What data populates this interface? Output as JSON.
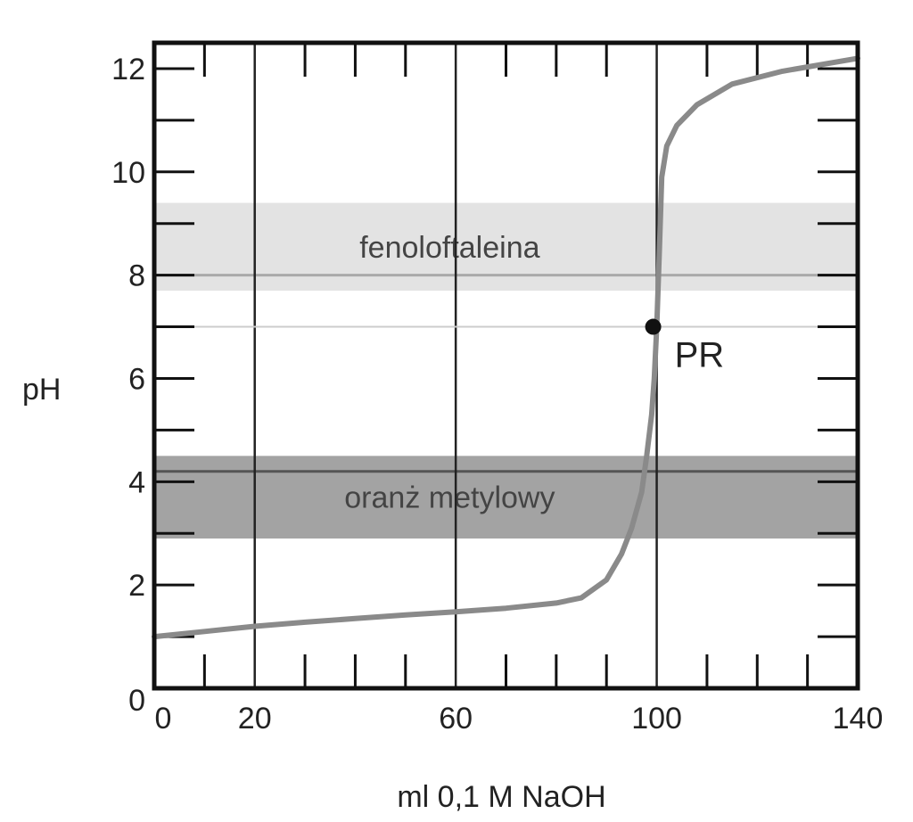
{
  "chart_data": {
    "type": "line",
    "xlabel": "ml 0,1 M NaOH",
    "ylabel": "pH",
    "xlim": [
      0,
      140
    ],
    "ylim": [
      0,
      12.5
    ],
    "x_ticks": [
      0,
      20,
      60,
      100,
      140
    ],
    "y_ticks": [
      0,
      2,
      4,
      6,
      8,
      10,
      12
    ],
    "grid": "vertical lines at 20, 60, 100",
    "series": [
      {
        "x": [
          0,
          10,
          20,
          30,
          40,
          50,
          60,
          70,
          80,
          85,
          90,
          93,
          95,
          97,
          98,
          99,
          99.5,
          100,
          100.5,
          101,
          102,
          104,
          108,
          115,
          125,
          140
        ],
        "y": [
          1.0,
          1.1,
          1.2,
          1.28,
          1.35,
          1.42,
          1.48,
          1.55,
          1.65,
          1.75,
          2.1,
          2.6,
          3.1,
          3.8,
          4.5,
          5.3,
          6.0,
          7.0,
          8.4,
          9.9,
          10.5,
          10.9,
          11.3,
          11.7,
          11.95,
          12.2
        ]
      }
    ],
    "bands": [
      {
        "label": "fenoloftaleina",
        "y_from": 7.7,
        "y_to": 9.4,
        "color": "#e3e3e3",
        "line_y": 8.0,
        "line_color": "#aaaaaa"
      },
      {
        "label": "oranż metylowy",
        "y_from": 2.9,
        "y_to": 4.5,
        "color": "#a3a3a3",
        "line_y": 4.2,
        "line_color": "#555555"
      }
    ],
    "point": {
      "label": "PR",
      "x": 100,
      "y": 7.0
    },
    "neutral_line_y": 7.0
  }
}
